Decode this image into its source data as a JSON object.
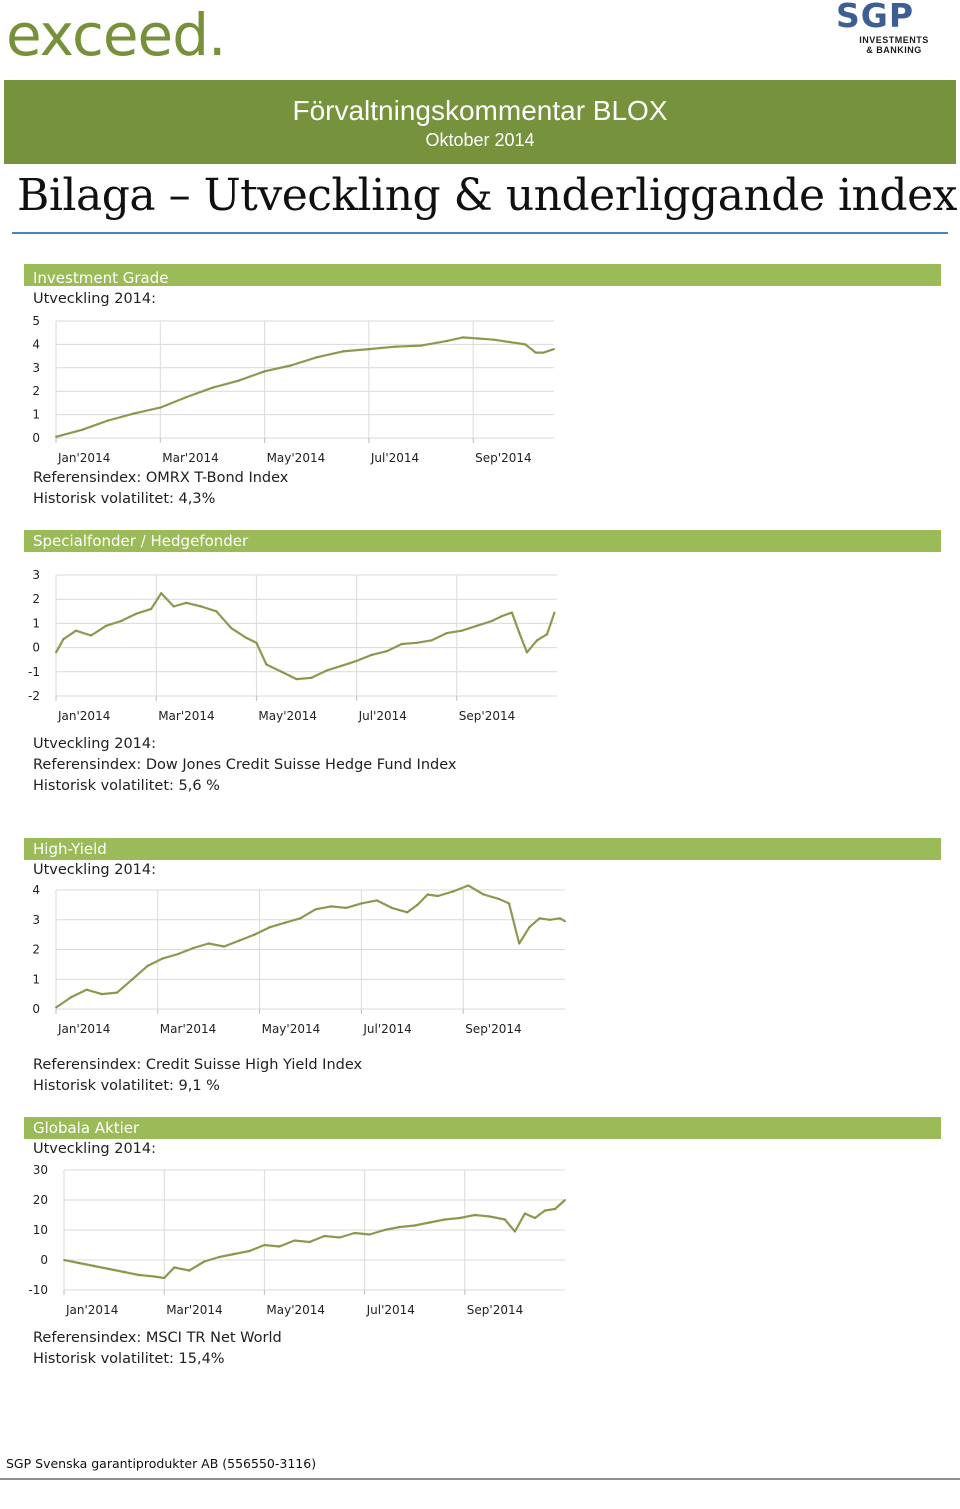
{
  "header": {
    "left_logo_text": "exceed.",
    "right_logo": {
      "letters": "SGP",
      "line1": "INVESTMENTS",
      "line2": "& BANKING"
    },
    "banner_title": "Förvaltningskommentar BLOX",
    "banner_subtitle": "Oktober 2014",
    "page_title": "Bilaga – Utveckling & underliggande index"
  },
  "colors": {
    "green_dark": "#76923c",
    "green_light": "#9bbb59",
    "logo_blue": "#3c5e92",
    "rule_blue": "#4f81bd"
  },
  "sections": [
    {
      "label": "Investment Grade",
      "development_label": "Utveckling 2014:",
      "reference": "Referensindex: OMRX T-Bond Index",
      "volatility": "Historisk volatilitet: 4,3%"
    },
    {
      "label": "Specialfonder / Hedgefonder",
      "development_label": "Utveckling 2014:",
      "reference": "Referensindex: Dow Jones Credit Suisse Hedge Fund Index",
      "volatility": "Historisk volatilitet: 5,6 %"
    },
    {
      "label": "High-Yield",
      "development_label": "Utveckling 2014:",
      "reference": "Referensindex: Credit Suisse High Yield Index",
      "volatility": "Historisk volatilitet: 9,1 %"
    },
    {
      "label": "Globala Aktier",
      "development_label": "Utveckling 2014:",
      "reference": "Referensindex: MSCI TR Net World",
      "volatility": "Historisk volatilitet: 15,4%"
    }
  ],
  "chart_data": [
    {
      "type": "line",
      "title": "",
      "xlabel": "",
      "ylabel": "",
      "x_ticks": [
        "Jan'2014",
        "Mar'2014",
        "May'2014",
        "Jul'2014",
        "Sep'2014"
      ],
      "x_tick_months": [
        0,
        2,
        4,
        6,
        8
      ],
      "xlim": [
        0,
        9.55
      ],
      "ylim": [
        0,
        5
      ],
      "y_ticks": [
        0,
        1,
        2,
        3,
        4,
        5
      ],
      "grid": true,
      "x": [
        0,
        0.5,
        1,
        1.5,
        2,
        2.5,
        3,
        3.5,
        4,
        4.5,
        5,
        5.5,
        6,
        6.5,
        7,
        7.5,
        7.8,
        8.1,
        8.4,
        8.7,
        9,
        9.2,
        9.35,
        9.55
      ],
      "y": [
        0.05,
        0.35,
        0.75,
        1.05,
        1.3,
        1.75,
        2.15,
        2.45,
        2.85,
        3.1,
        3.45,
        3.7,
        3.8,
        3.9,
        3.95,
        4.15,
        4.3,
        4.25,
        4.2,
        4.1,
        4.0,
        3.65,
        3.65,
        3.8
      ]
    },
    {
      "type": "line",
      "title": "",
      "xlabel": "",
      "ylabel": "",
      "x_ticks": [
        "Jan'2014",
        "Mar'2014",
        "May'2014",
        "Jul'2014",
        "Sep'2014"
      ],
      "x_tick_months": [
        0,
        2,
        4,
        6,
        8
      ],
      "xlim": [
        0,
        10
      ],
      "ylim": [
        -2,
        3
      ],
      "y_ticks": [
        -2,
        -1,
        0,
        1,
        2,
        3
      ],
      "grid": true,
      "x": [
        0,
        0.15,
        0.4,
        0.7,
        1.0,
        1.3,
        1.6,
        1.9,
        2.1,
        2.35,
        2.6,
        2.9,
        3.2,
        3.5,
        3.8,
        4.0,
        4.2,
        4.5,
        4.8,
        5.1,
        5.4,
        5.7,
        6.0,
        6.3,
        6.6,
        6.9,
        7.2,
        7.5,
        7.8,
        8.1,
        8.4,
        8.7,
        8.9,
        9.1,
        9.25,
        9.4,
        9.6,
        9.8,
        9.95
      ],
      "y": [
        -0.2,
        0.35,
        0.7,
        0.5,
        0.9,
        1.1,
        1.4,
        1.6,
        2.25,
        1.7,
        1.85,
        1.7,
        1.5,
        0.8,
        0.4,
        0.2,
        -0.7,
        -1.0,
        -1.3,
        -1.25,
        -0.95,
        -0.75,
        -0.55,
        -0.3,
        -0.15,
        0.15,
        0.2,
        0.3,
        0.6,
        0.7,
        0.9,
        1.1,
        1.3,
        1.45,
        0.6,
        -0.2,
        0.3,
        0.55,
        1.45
      ]
    },
    {
      "type": "line",
      "title": "",
      "xlabel": "",
      "ylabel": "",
      "x_ticks": [
        "Jan'2014",
        "Mar'2014",
        "May'2014",
        "Jul'2014",
        "Sep'2014"
      ],
      "x_tick_months": [
        0,
        2,
        4,
        6,
        8
      ],
      "xlim": [
        0,
        10
      ],
      "ylim": [
        0,
        4
      ],
      "y_ticks": [
        0,
        1,
        2,
        3,
        4
      ],
      "grid": true,
      "x": [
        0,
        0.3,
        0.6,
        0.9,
        1.2,
        1.5,
        1.8,
        2.1,
        2.4,
        2.7,
        3.0,
        3.3,
        3.6,
        3.9,
        4.2,
        4.5,
        4.8,
        5.1,
        5.4,
        5.7,
        6.0,
        6.3,
        6.6,
        6.9,
        7.1,
        7.3,
        7.5,
        7.8,
        8.1,
        8.4,
        8.7,
        8.9,
        9.1,
        9.3,
        9.5,
        9.7,
        9.9,
        10
      ],
      "y": [
        0.05,
        0.4,
        0.65,
        0.5,
        0.55,
        1.0,
        1.45,
        1.7,
        1.85,
        2.05,
        2.2,
        2.1,
        2.3,
        2.5,
        2.75,
        2.9,
        3.05,
        3.35,
        3.45,
        3.4,
        3.55,
        3.65,
        3.4,
        3.25,
        3.5,
        3.85,
        3.8,
        3.95,
        4.15,
        3.85,
        3.7,
        3.55,
        2.2,
        2.75,
        3.05,
        3.0,
        3.05,
        2.95
      ]
    },
    {
      "type": "line",
      "title": "",
      "xlabel": "",
      "ylabel": "",
      "x_ticks": [
        "Jan'2014",
        "Mar'2014",
        "May'2014",
        "Jul'2014",
        "Sep'2014"
      ],
      "x_tick_months": [
        0,
        2,
        4,
        6,
        8
      ],
      "xlim": [
        0,
        10
      ],
      "ylim": [
        -10,
        30
      ],
      "y_ticks": [
        -10,
        0,
        10,
        20,
        30
      ],
      "grid": true,
      "x": [
        0,
        0.3,
        0.6,
        0.9,
        1.2,
        1.5,
        1.8,
        2.0,
        2.2,
        2.5,
        2.8,
        3.1,
        3.4,
        3.7,
        4.0,
        4.3,
        4.6,
        4.9,
        5.2,
        5.5,
        5.8,
        6.1,
        6.4,
        6.7,
        7.0,
        7.3,
        7.6,
        7.9,
        8.2,
        8.5,
        8.8,
        9.0,
        9.2,
        9.4,
        9.6,
        9.8,
        10
      ],
      "y": [
        0,
        -1,
        -2,
        -3,
        -4,
        -5,
        -5.5,
        -6,
        -2.5,
        -3.5,
        -0.5,
        1,
        2,
        3,
        5,
        4.5,
        6.5,
        6,
        8,
        7.5,
        9,
        8.5,
        10,
        11,
        11.5,
        12.5,
        13.5,
        14,
        15,
        14.5,
        13.5,
        9.5,
        15.5,
        14,
        16.5,
        17,
        20
      ]
    }
  ],
  "footer": {
    "text": "SGP Svenska garantiprodukter AB (556550-3116)"
  }
}
